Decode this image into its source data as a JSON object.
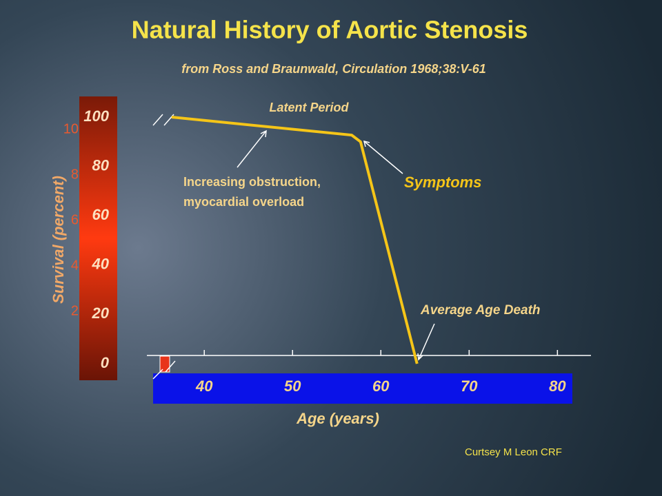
{
  "chart_data": {
    "type": "line",
    "title": "Natural History of Aortic Stenosis",
    "subtitle": "from Ross and Braunwald, Circulation 1968;38:V-61",
    "x_label": "Age (years)",
    "y_label": "Survival (percent)",
    "xlim": [
      33.5,
      83.8
    ],
    "xticks": [
      40,
      50,
      60,
      70,
      80
    ],
    "ylim": [
      0,
      100
    ],
    "yticks": [
      0,
      20,
      40,
      60,
      80,
      100
    ],
    "y2lim": [
      0,
      12
    ],
    "y2ticks": [
      2,
      4,
      6,
      8,
      10
    ],
    "series": [
      {
        "color": "#f5c518",
        "x": [
          36.3,
          56.7,
          57.7,
          64.1
        ],
        "values": [
          100,
          92.7,
          90,
          0
        ]
      }
    ],
    "annotations": [
      "Latent Period",
      "Increasing obstruction,",
      "myocardial overload",
      "Symptoms",
      "Average Age Death"
    ],
    "credit": "Curtsey M Leon CRF"
  }
}
